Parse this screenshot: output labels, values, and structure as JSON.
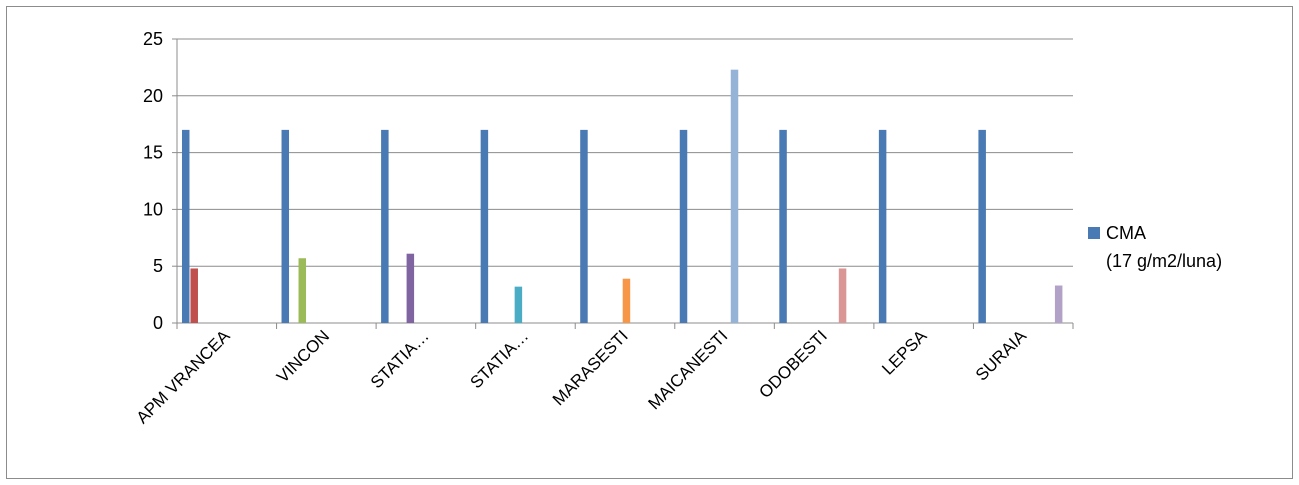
{
  "chart_data": {
    "type": "bar",
    "categories": [
      "APM VRANCEA",
      "VINCON",
      "STATIA…",
      "STATIA…",
      "MARASESTI",
      "MAICANESTI",
      "ODOBESTI",
      "LEPSA",
      "SURAIA"
    ],
    "ylim": [
      0,
      25
    ],
    "yticks": [
      "0",
      "5",
      "10",
      "15",
      "20",
      "25"
    ],
    "grid": true,
    "legend_position": "right",
    "series": [
      {
        "name": "CMA",
        "name_line2": "(17 g/m2/luna)",
        "color": "#4a7ab3",
        "values": [
          17,
          17,
          17,
          17,
          17,
          17,
          17,
          17,
          17
        ]
      },
      {
        "values": [
          4.8,
          0,
          0,
          0,
          0,
          0,
          0,
          0,
          0
        ],
        "color": "#c0504d"
      },
      {
        "values": [
          0,
          5.7,
          0,
          0,
          0,
          0,
          0,
          0,
          0
        ],
        "color": "#9bbb59"
      },
      {
        "values": [
          0,
          0,
          6.1,
          0,
          0,
          0,
          0,
          0,
          0
        ],
        "color": "#8064a2"
      },
      {
        "values": [
          0,
          0,
          0,
          3.2,
          0,
          0,
          0,
          0,
          0
        ],
        "color": "#4bacc6"
      },
      {
        "values": [
          0,
          0,
          0,
          0,
          3.9,
          0,
          0,
          0,
          0
        ],
        "color": "#f79646"
      },
      {
        "values": [
          0,
          0,
          0,
          0,
          0,
          22.3,
          0,
          0,
          0
        ],
        "color": "#95b3d7"
      },
      {
        "values": [
          0,
          0,
          0,
          0,
          0,
          0,
          4.8,
          0,
          0
        ],
        "color": "#d99694"
      },
      {
        "values": [
          0,
          0,
          0,
          0,
          0,
          0,
          0,
          0,
          0
        ],
        "color": "#c3d69b"
      },
      {
        "values": [
          0,
          0,
          0,
          0,
          0,
          0,
          0,
          0,
          3.3
        ],
        "color": "#b3a2c7"
      }
    ]
  }
}
